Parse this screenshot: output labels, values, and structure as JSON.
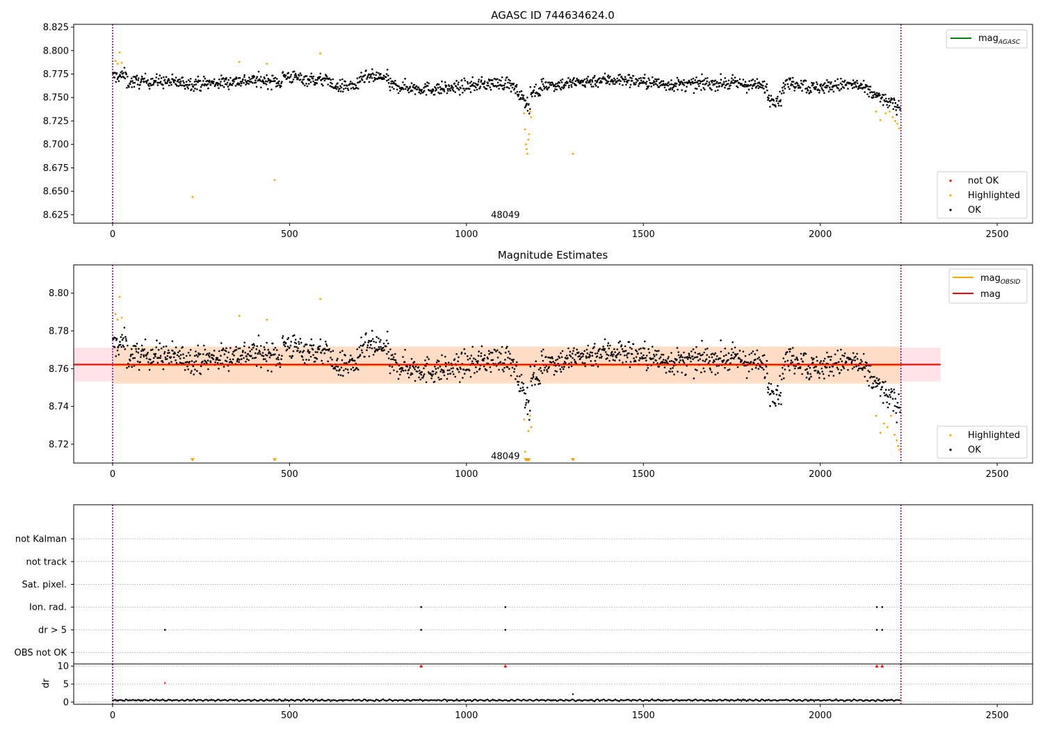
{
  "figure": {
    "title": "AGASC ID 744634624.0",
    "background": "#ffffff"
  },
  "colors": {
    "ok": "#000000",
    "highlighted": "#ffa500",
    "not_ok": "#ff0000",
    "mag_agasc": "#008000",
    "mag_obsid": "#ffa500",
    "mag": "#ff0000",
    "obs_boundary": "#800080",
    "band_outer": "#ffc0cb",
    "band_inner": "#ffdab9"
  },
  "chart_data": [
    {
      "id": "top",
      "type": "scatter",
      "title": "",
      "xlabel": "",
      "ylabel": "",
      "xlim": [
        -110,
        2600
      ],
      "ylim": [
        8.616,
        8.828
      ],
      "xticks": [
        0,
        500,
        1000,
        1500,
        2000,
        2500
      ],
      "yticks": [
        8.625,
        8.65,
        8.675,
        8.7,
        8.725,
        8.75,
        8.775,
        8.8,
        8.825
      ],
      "ytick_labels": [
        "8.625",
        "8.650",
        "8.675",
        "8.700",
        "8.725",
        "8.750",
        "8.775",
        "8.800",
        "8.825"
      ],
      "obs_lines": [
        0,
        2228
      ],
      "obsid_label": {
        "text": "48049",
        "x": 1110,
        "y": 8.6245
      },
      "legend_top": [
        {
          "name": "mag_AGASC",
          "main": "mag",
          "sub": "AGASC",
          "style": "line",
          "color": "#008000"
        }
      ],
      "legend_bottom": [
        {
          "name": "not OK",
          "style": "marker",
          "color": "#ff0000"
        },
        {
          "name": "Highlighted",
          "style": "marker",
          "color": "#ffa500"
        },
        {
          "name": "OK",
          "style": "marker",
          "color": "#000000"
        }
      ],
      "series_rule": "OK points follow the stellar magnitude trend (8.74–8.78 with a dip near x≈1165 and a decline after x≈2150); highlighted points are the outliers listed below",
      "highlighted_points": [
        [
          8,
          8.789
        ],
        [
          14,
          8.786
        ],
        [
          20,
          8.798
        ],
        [
          26,
          8.787
        ],
        [
          226,
          8.644
        ],
        [
          358,
          8.788
        ],
        [
          436,
          8.786
        ],
        [
          458,
          8.662
        ],
        [
          587,
          8.797
        ],
        [
          1163,
          8.733
        ],
        [
          1166,
          8.716
        ],
        [
          1168,
          8.7
        ],
        [
          1170,
          8.695
        ],
        [
          1172,
          8.69
        ],
        [
          1175,
          8.705
        ],
        [
          1177,
          8.711
        ],
        [
          1180,
          8.735
        ],
        [
          1183,
          8.729
        ],
        [
          1301,
          8.69
        ],
        [
          2158,
          8.735
        ],
        [
          2170,
          8.726
        ],
        [
          2185,
          8.733
        ],
        [
          2196,
          8.735
        ],
        [
          2205,
          8.729
        ],
        [
          2212,
          8.725
        ],
        [
          2218,
          8.722
        ],
        [
          2223,
          8.717
        ]
      ]
    },
    {
      "id": "middle",
      "type": "scatter",
      "title": "Magnitude Estimates",
      "xlabel": "",
      "ylabel": "",
      "xlim": [
        -110,
        2600
      ],
      "ylim": [
        8.71,
        8.815
      ],
      "xticks": [
        0,
        500,
        1000,
        1500,
        2000,
        2500
      ],
      "yticks": [
        8.72,
        8.74,
        8.76,
        8.78,
        8.8
      ],
      "ytick_labels": [
        "8.72",
        "8.74",
        "8.76",
        "8.78",
        "8.80"
      ],
      "obs_lines": [
        0,
        2228
      ],
      "obsid_label": {
        "text": "48049",
        "x": 1110,
        "y": 8.7135
      },
      "mag": 8.7622,
      "mag_obsid": 8.7618,
      "band_outer": [
        8.7532,
        8.7712
      ],
      "band_outer_x": [
        -110,
        2340
      ],
      "band_inner": [
        8.752,
        8.7718
      ],
      "band_inner_x": [
        0,
        2228
      ],
      "legend_top": [
        {
          "name": "mag_OBSID",
          "main": "mag",
          "sub": "OBSID",
          "style": "line",
          "color": "#ffa500"
        },
        {
          "name": "mag",
          "main": "mag",
          "sub": "",
          "style": "line",
          "color": "#ff0000"
        }
      ],
      "legend_bottom": [
        {
          "name": "Highlighted",
          "style": "marker",
          "color": "#ffa500"
        },
        {
          "name": "OK",
          "style": "marker",
          "color": "#000000"
        }
      ],
      "offscale_markers_x": [
        226,
        458,
        1168,
        1172,
        1176,
        1301
      ],
      "highlighted_points": [
        [
          8,
          8.789
        ],
        [
          14,
          8.786
        ],
        [
          20,
          8.798
        ],
        [
          26,
          8.787
        ],
        [
          358,
          8.788
        ],
        [
          436,
          8.786
        ],
        [
          587,
          8.797
        ],
        [
          1163,
          8.733
        ],
        [
          1166,
          8.716
        ],
        [
          1175,
          8.727
        ],
        [
          1180,
          8.735
        ],
        [
          1183,
          8.729
        ],
        [
          2158,
          8.735
        ],
        [
          2170,
          8.726
        ],
        [
          2180,
          8.731
        ],
        [
          2190,
          8.729
        ],
        [
          2200,
          8.735
        ],
        [
          2210,
          8.725
        ],
        [
          2216,
          8.722
        ],
        [
          2220,
          8.719
        ],
        [
          2224,
          8.717
        ]
      ]
    },
    {
      "id": "flags",
      "type": "scatter",
      "title": "",
      "xlim": [
        -110,
        2600
      ],
      "ylim": [
        -0.5,
        6.5
      ],
      "categories": [
        "OBS not OK",
        "dr > 5",
        "Ion. rad.",
        "Sat. pixel.",
        "not track",
        "not Kalman"
      ],
      "obs_lines": [
        0,
        2228
      ],
      "flag_points": {
        "dr > 5": [
          148,
          872,
          1110,
          2160,
          2175
        ],
        "Ion. rad.": [
          872,
          1110,
          2160,
          2175
        ]
      }
    },
    {
      "id": "dr",
      "type": "scatter",
      "title": "",
      "xlabel": "",
      "ylabel": "dr",
      "xlim": [
        -110,
        2600
      ],
      "ylim": [
        -0.6,
        10.6
      ],
      "xticks": [
        0,
        500,
        1000,
        1500,
        2000,
        2500
      ],
      "yticks": [
        0,
        5,
        10
      ],
      "ytick_labels": [
        "0",
        "5",
        "10"
      ],
      "obs_lines": [
        0,
        2228
      ],
      "clipped_markers_x": [
        872,
        1110,
        2160,
        2175
      ],
      "outlier_points": [
        [
          148,
          5.3
        ],
        [
          1301,
          2.2
        ]
      ],
      "series_rule": "dr values cluster between 0 and 1 for every sample"
    }
  ],
  "xtick_labels": [
    "0",
    "500",
    "1000",
    "1500",
    "2000",
    "2500"
  ]
}
